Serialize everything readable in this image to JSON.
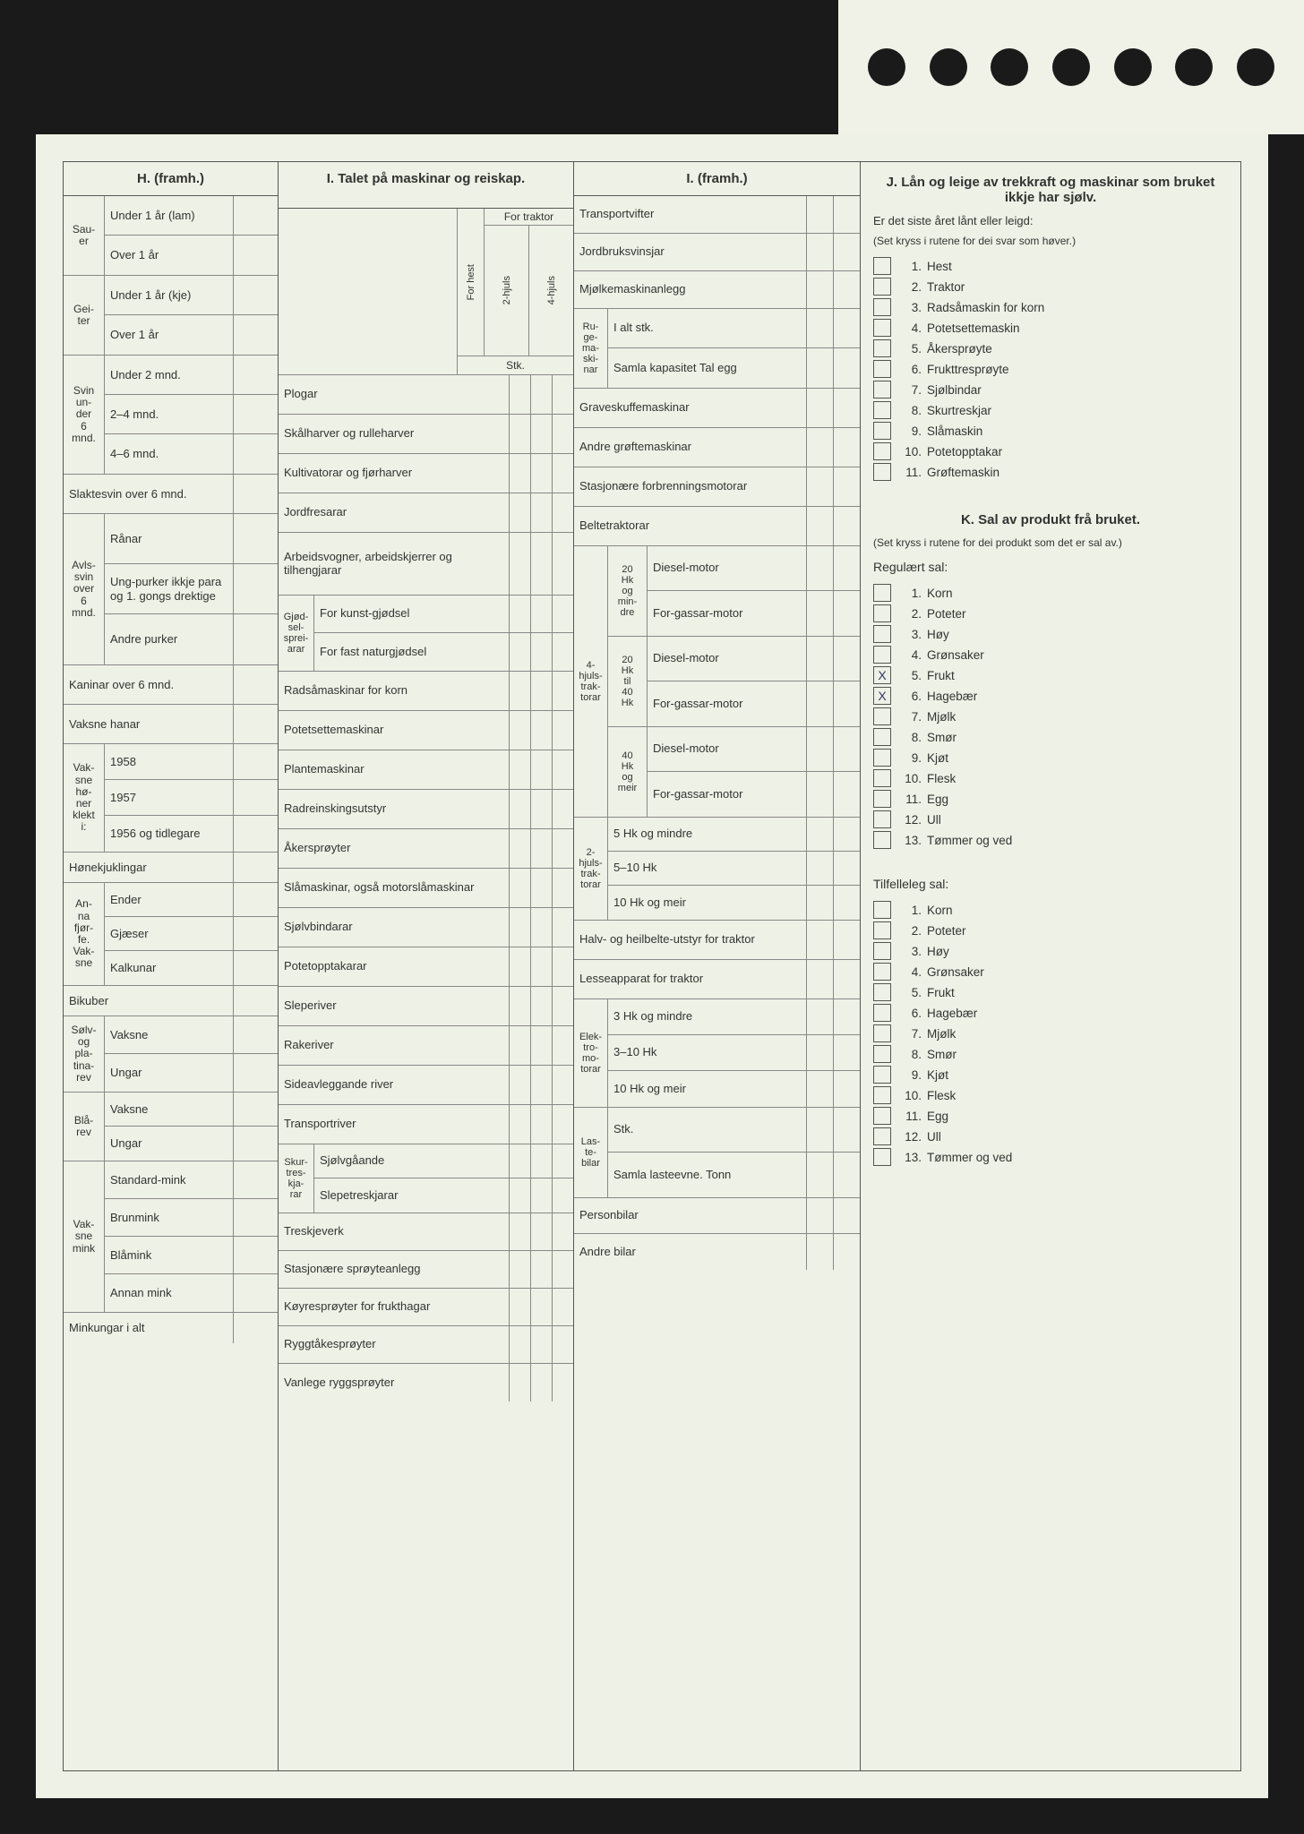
{
  "background_color": "#eef1e5",
  "border_color": "#555555",
  "text_color": "#333333",
  "mark_color": "#334466",
  "H": {
    "title": "H. (framh.)",
    "groups": [
      {
        "stub": "Sau-\ner",
        "rows": [
          "Under 1 år (lam)",
          "Over 1 år"
        ]
      },
      {
        "stub": "Gei-\nter",
        "rows": [
          "Under 1 år (kje)",
          "Over 1 år"
        ]
      },
      {
        "stub": "Svin\nun-\nder\n6\nmnd.",
        "rows": [
          "Under 2 mnd.",
          "2–4 mnd.",
          "4–6 mnd."
        ]
      }
    ],
    "singles": [
      "Slaktesvin over 6 mnd."
    ],
    "avls": {
      "stub": "Avls-\nsvin\nover\n6\nmnd.",
      "rows": [
        "Rånar",
        "Ung-purker ikkje para og 1. gongs drektige",
        "Andre purker"
      ]
    },
    "more": [
      "Kaninar over 6 mnd.",
      "Vaksne hanar"
    ],
    "honer": {
      "stub": "Vak-\nsne\nhø-\nner\nklekt\ni:",
      "rows": [
        "1958",
        "1957",
        "1956 og tidlegare"
      ]
    },
    "more2": [
      "Hønekjuklingar"
    ],
    "fjorfe": {
      "stub": "An-\nna\nfjør-\nfe.\nVak-\nsne",
      "rows": [
        "Ender",
        "Gjæser",
        "Kalkunar"
      ]
    },
    "more3": [
      "Bikuber"
    ],
    "solv": {
      "stub": "Sølv-\nog\npla-\ntina-\nrev",
      "rows": [
        "Vaksne",
        "Ungar"
      ]
    },
    "bla": {
      "stub": "Blå-\nrev",
      "rows": [
        "Vaksne",
        "Ungar"
      ]
    },
    "mink": {
      "stub": "Vak-\nsne\nmink",
      "rows": [
        "Standard-mink",
        "Brunmink",
        "Blåmink",
        "Annan mink"
      ]
    },
    "last": "Minkungar i alt"
  },
  "I1": {
    "title": "I. Talet på maskinar og reiskap.",
    "col_headers": {
      "hest": "For hest",
      "traktor": "For traktor",
      "t2": "2-hjuls",
      "t4": "4-hjuls",
      "stk": "Stk."
    },
    "rows": [
      "Plogar",
      "Skålharver og rulleharver",
      "Kultivatorar og fjørharver",
      "Jordfresarar",
      "Arbeidsvogner, arbeidskjerrer og tilhengjarar"
    ],
    "gjod": {
      "stub": "Gjød-\nsel-\nsprei-\narar",
      "rows": [
        "For kunst-gjødsel",
        "For fast naturgjødsel"
      ]
    },
    "rows2": [
      "Radsåmaskinar for korn",
      "Potetsettemaskinar",
      "Plantemaskinar",
      "Radreinskingsutstyr",
      "Åkersprøyter",
      "Slåmaskinar, også motorslåmaskinar",
      "Sjølvbindarar",
      "Potetopptakarar",
      "Sleperiver",
      "Rakeriver",
      "Sideavleggande river",
      "Transportriver"
    ],
    "skur": {
      "stub": "Skur-\ntres-\nkja-\nrar",
      "rows": [
        "Sjølvgåande",
        "Slepetreskjarar"
      ]
    },
    "rows3": [
      "Treskjeverk",
      "Stasjonære sprøyteanlegg",
      "Køyresprøyter for frukthagar",
      "Ryggtåkesprøyter",
      "Vanlege ryggsprøyter"
    ]
  },
  "I2": {
    "title": "I. (framh.)",
    "top": [
      "Transportvifter",
      "Jordbruksvinsjar",
      "Mjølkemaskinanlegg"
    ],
    "ruge": {
      "stub": "Ru-\nge-\nma-\nski-\nnar",
      "rows": [
        "I alt stk.",
        "Samla kapasitet Tal egg"
      ]
    },
    "mid": [
      "Graveskuffemaskinar",
      "Andre grøftemaskinar",
      "Stasjonære forbrenningsmotorar",
      "Beltetraktorar"
    ],
    "trak4": {
      "stub": "4-\nhjuls-\ntrak-\ntorar",
      "groups": [
        {
          "sub": "20\nHk\nog\nmin-\ndre",
          "rows": [
            "Diesel-motor",
            "For-gassar-motor"
          ]
        },
        {
          "sub": "20\nHk\ntil\n40\nHk",
          "rows": [
            "Diesel-motor",
            "For-gassar-motor"
          ]
        },
        {
          "sub": "40\nHk\nog\nmeir",
          "rows": [
            "Diesel-motor",
            "For-gassar-motor"
          ]
        }
      ]
    },
    "trak2": {
      "stub": "2-\nhjuls-\ntrak-\ntorar",
      "rows": [
        "5 Hk og mindre",
        "5–10 Hk",
        "10 Hk og meir"
      ]
    },
    "mid2": [
      "Halv- og heilbelte-utstyr for traktor",
      "Lesseapparat for traktor"
    ],
    "elek": {
      "stub": "Elek-\ntro-\nmo-\ntorar",
      "rows": [
        "3 Hk og mindre",
        "3–10 Hk",
        "10 Hk og meir"
      ]
    },
    "laste": {
      "stub": "Las-\nte-\nbilar",
      "rows": [
        "Stk.",
        "Samla lasteevne. Tonn"
      ]
    },
    "last": [
      "Personbilar",
      "Andre bilar"
    ]
  },
  "J": {
    "title": "J. Lån og leige av trekkraft og maskinar som bruket ikkje har sjølv.",
    "q": "Er det siste året lånt eller leigd:",
    "note": "(Set kryss i rutene for dei svar som høver.)",
    "items": [
      "Hest",
      "Traktor",
      "Radsåmaskin for korn",
      "Potetsettemaskin",
      "Åkersprøyte",
      "Frukttresprøyte",
      "Sjølbindar",
      "Skurtreskjar",
      "Slåmaskin",
      "Potetopptakar",
      "Grøftemaskin"
    ]
  },
  "K": {
    "title": "K. Sal av produkt frå bruket.",
    "note": "(Set kryss i rutene for dei produkt som det er sal av.)",
    "reg_title": "Regulært sal:",
    "reg": [
      {
        "n": 1,
        "t": "Korn",
        "x": false
      },
      {
        "n": 2,
        "t": "Poteter",
        "x": false
      },
      {
        "n": 3,
        "t": "Høy",
        "x": false
      },
      {
        "n": 4,
        "t": "Grønsaker",
        "x": false
      },
      {
        "n": 5,
        "t": "Frukt",
        "x": true
      },
      {
        "n": 6,
        "t": "Hagebær",
        "x": true
      },
      {
        "n": 7,
        "t": "Mjølk",
        "x": false
      },
      {
        "n": 8,
        "t": "Smør",
        "x": false
      },
      {
        "n": 9,
        "t": "Kjøt",
        "x": false
      },
      {
        "n": 10,
        "t": "Flesk",
        "x": false
      },
      {
        "n": 11,
        "t": "Egg",
        "x": false
      },
      {
        "n": 12,
        "t": "Ull",
        "x": false
      },
      {
        "n": 13,
        "t": "Tømmer og ved",
        "x": false
      }
    ],
    "til_title": "Tilfelleleg sal:",
    "til": [
      {
        "n": 1,
        "t": "Korn"
      },
      {
        "n": 2,
        "t": "Poteter"
      },
      {
        "n": 3,
        "t": "Høy"
      },
      {
        "n": 4,
        "t": "Grønsaker"
      },
      {
        "n": 5,
        "t": "Frukt"
      },
      {
        "n": 6,
        "t": "Hagebær"
      },
      {
        "n": 7,
        "t": "Mjølk"
      },
      {
        "n": 8,
        "t": "Smør"
      },
      {
        "n": 9,
        "t": "Kjøt"
      },
      {
        "n": 10,
        "t": "Flesk"
      },
      {
        "n": 11,
        "t": "Egg"
      },
      {
        "n": 12,
        "t": "Ull"
      },
      {
        "n": 13,
        "t": "Tømmer og ved"
      }
    ]
  }
}
